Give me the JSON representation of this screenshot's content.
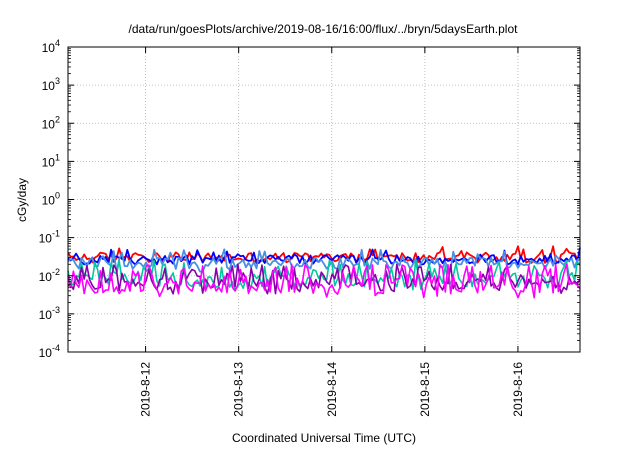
{
  "chart_data": {
    "type": "line",
    "title": "/data/run/goesPlots/archive/2019-08-16/16:00/flux/../bryn/5daysEarth.plot",
    "xlabel": "Coordinated Universal Time (UTC)",
    "ylabel": "cGy/day",
    "yscale": "log",
    "ylim": [
      0.0001,
      10000
    ],
    "xlim": [
      "2019-08-11T04:00",
      "2019-08-16T16:00"
    ],
    "grid": true,
    "y_ticks": [
      {
        "value": 0.0001,
        "base": "10",
        "exp": "-4"
      },
      {
        "value": 0.001,
        "base": "10",
        "exp": "-3"
      },
      {
        "value": 0.01,
        "base": "10",
        "exp": "-2"
      },
      {
        "value": 0.1,
        "base": "10",
        "exp": "-1"
      },
      {
        "value": 1,
        "base": "10",
        "exp": "0"
      },
      {
        "value": 10,
        "base": "10",
        "exp": "1"
      },
      {
        "value": 100,
        "base": "10",
        "exp": "2"
      },
      {
        "value": 1000,
        "base": "10",
        "exp": "3"
      },
      {
        "value": 10000,
        "base": "10",
        "exp": "4"
      }
    ],
    "x_ticks": [
      {
        "value": "2019-08-12T00:00",
        "label": "2019-8-12"
      },
      {
        "value": "2019-08-13T00:00",
        "label": "2019-8-13"
      },
      {
        "value": "2019-08-14T00:00",
        "label": "2019-8-14"
      },
      {
        "value": "2019-08-15T00:00",
        "label": "2019-8-15"
      },
      {
        "value": "2019-08-16T00:00",
        "label": "2019-8-16"
      }
    ],
    "series": [
      {
        "color": "#ff0000",
        "base": 0.03,
        "spread": 0.28,
        "spike_up": 0.06,
        "spike_prob": 0.1,
        "dip_prob": 0.0
      },
      {
        "color": "#0000ff",
        "base": 0.026,
        "spread": 0.25,
        "spike_up": 0.055,
        "spike_prob": 0.1,
        "dip_prob": 0.0
      },
      {
        "color": "#4a90e2",
        "base": 0.021,
        "spread": 0.3,
        "spike_up": 0.05,
        "spike_prob": 0.12,
        "dip_prob": 0.05
      },
      {
        "color": "#00c8a0",
        "base": 0.0075,
        "spread": 0.35,
        "spike_up": 0.025,
        "spike_prob": 0.3,
        "dip_prob": 0.1
      },
      {
        "color": "#8800aa",
        "base": 0.006,
        "spread": 0.3,
        "spike_up": 0.02,
        "spike_prob": 0.35,
        "dip_prob": 0.1
      },
      {
        "color": "#ff00ff",
        "base": 0.0048,
        "spread": 0.3,
        "spike_up": 0.02,
        "spike_prob": 0.4,
        "dip_prob": 0.12
      }
    ]
  }
}
